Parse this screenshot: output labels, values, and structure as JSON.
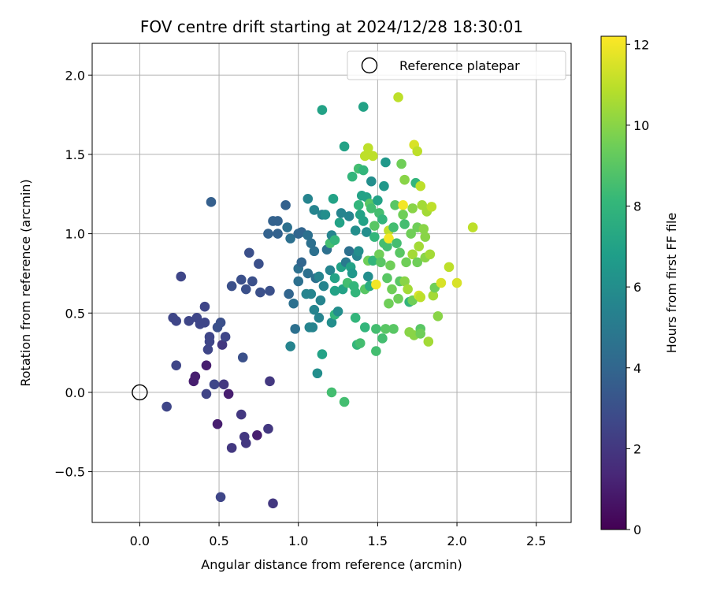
{
  "chart_data": {
    "type": "scatter",
    "title": "FOV centre drift starting at 2024/12/28 18:30:01",
    "xlabel": "Angular distance from reference (arcmin)",
    "ylabel": "Rotation from reference (arcmin)",
    "xlim": [
      -0.3,
      2.72
    ],
    "ylim": [
      -0.82,
      2.2
    ],
    "xticks": [
      0.0,
      0.5,
      1.0,
      1.5,
      2.0,
      2.5
    ],
    "yticks": [
      -0.5,
      0.0,
      0.5,
      1.0,
      1.5,
      2.0
    ],
    "xtick_labels": [
      "0.0",
      "0.5",
      "1.0",
      "1.5",
      "2.0",
      "2.5"
    ],
    "ytick_labels": [
      "−0.5",
      "0.0",
      "0.5",
      "1.0",
      "1.5",
      "2.0"
    ],
    "grid": true,
    "legend": {
      "placement": "top-right",
      "entries": [
        "Reference platepar"
      ]
    },
    "reference": {
      "x": 0.0,
      "y": 0.0,
      "label": "Reference platepar"
    },
    "colorbar": {
      "label": "Hours from first FF file",
      "min": 0,
      "max": 12.2,
      "ticks": [
        0,
        2,
        4,
        6,
        8,
        10,
        12
      ],
      "tick_labels": [
        "0",
        "2",
        "4",
        "6",
        "8",
        "10",
        "12"
      ],
      "colormap": "viridis"
    },
    "colormap_stops": [
      "#440154",
      "#482878",
      "#3e4989",
      "#31688e",
      "#26828e",
      "#1f9e89",
      "#35b779",
      "#6ece58",
      "#b5de2b",
      "#fde725"
    ],
    "series": [
      {
        "points": [
          [
            0.17,
            -0.09,
            2.6
          ],
          [
            0.21,
            0.47,
            2.6
          ],
          [
            0.23,
            0.17,
            2.6
          ],
          [
            0.23,
            0.45,
            2.6
          ],
          [
            0.26,
            0.73,
            2.6
          ],
          [
            0.31,
            0.45,
            2.6
          ],
          [
            0.34,
            0.07,
            1.0
          ],
          [
            0.35,
            0.1,
            1.0
          ],
          [
            0.36,
            0.47,
            2.6
          ],
          [
            0.38,
            0.43,
            2.6
          ],
          [
            0.41,
            0.44,
            2.6
          ],
          [
            0.41,
            0.54,
            2.6
          ],
          [
            0.42,
            0.17,
            1.0
          ],
          [
            0.42,
            -0.01,
            2.5
          ],
          [
            0.43,
            0.27,
            2.6
          ],
          [
            0.44,
            0.32,
            2.6
          ],
          [
            0.44,
            0.35,
            2.6
          ],
          [
            0.45,
            1.2,
            3.7
          ],
          [
            0.47,
            0.05,
            2.6
          ],
          [
            0.49,
            -0.2,
            1.0
          ],
          [
            0.49,
            0.41,
            3.0
          ],
          [
            0.51,
            0.44,
            3.0
          ],
          [
            0.51,
            -0.66,
            2.6
          ],
          [
            0.52,
            0.3,
            2.0
          ],
          [
            0.53,
            0.05,
            2.0
          ],
          [
            0.54,
            0.35,
            2.6
          ],
          [
            0.56,
            -0.01,
            1.0
          ],
          [
            0.58,
            -0.35,
            2.0
          ],
          [
            0.58,
            0.67,
            3.0
          ],
          [
            0.64,
            0.71,
            3.0
          ],
          [
            0.64,
            -0.14,
            2.0
          ],
          [
            0.65,
            0.22,
            3.0
          ],
          [
            0.66,
            -0.28,
            2.0
          ],
          [
            0.67,
            -0.32,
            2.0
          ],
          [
            0.67,
            0.65,
            3.0
          ],
          [
            0.69,
            0.88,
            3.0
          ],
          [
            0.71,
            0.7,
            3.0
          ],
          [
            0.74,
            -0.27,
            1.0
          ],
          [
            0.75,
            0.81,
            3.0
          ],
          [
            0.76,
            0.63,
            3.0
          ],
          [
            0.81,
            1.0,
            3.8
          ],
          [
            0.81,
            -0.23,
            2.0
          ],
          [
            0.82,
            0.64,
            3.0
          ],
          [
            0.82,
            0.07,
            2.0
          ],
          [
            0.84,
            -0.7,
            2.0
          ],
          [
            0.84,
            1.08,
            3.8
          ],
          [
            0.87,
            1.08,
            3.8
          ],
          [
            0.87,
            1.0,
            3.8
          ],
          [
            0.92,
            1.18,
            3.8
          ],
          [
            0.93,
            1.04,
            4.5
          ],
          [
            0.94,
            0.62,
            4.0
          ],
          [
            0.95,
            0.29,
            5.5
          ],
          [
            0.95,
            0.97,
            4.5
          ],
          [
            0.97,
            0.56,
            4.5
          ],
          [
            0.98,
            0.4,
            4.5
          ],
          [
            1.0,
            0.78,
            4.5
          ],
          [
            1.0,
            1.0,
            4.0
          ],
          [
            1.0,
            0.7,
            4.5
          ],
          [
            1.02,
            0.82,
            4.0
          ],
          [
            1.02,
            1.01,
            4.0
          ],
          [
            1.05,
            0.62,
            5.5
          ],
          [
            1.06,
            0.99,
            4.5
          ],
          [
            1.06,
            1.22,
            5.5
          ],
          [
            1.06,
            0.75,
            4.5
          ],
          [
            1.07,
            0.41,
            5.5
          ],
          [
            1.08,
            0.94,
            4.5
          ],
          [
            1.08,
            0.62,
            5.5
          ],
          [
            1.09,
            0.41,
            5.5
          ],
          [
            1.1,
            0.52,
            5.5
          ],
          [
            1.1,
            1.15,
            5.5
          ],
          [
            1.1,
            0.89,
            4.5
          ],
          [
            1.11,
            0.72,
            4.5
          ],
          [
            1.12,
            0.12,
            6.0
          ],
          [
            1.13,
            0.73,
            5.5
          ],
          [
            1.13,
            0.47,
            5.5
          ],
          [
            1.14,
            0.58,
            5.5
          ],
          [
            1.15,
            1.78,
            7.0
          ],
          [
            1.15,
            0.24,
            7.0
          ],
          [
            1.15,
            1.12,
            5.5
          ],
          [
            1.16,
            0.67,
            5.5
          ],
          [
            1.17,
            1.12,
            6.0
          ],
          [
            1.18,
            0.9,
            4.5
          ],
          [
            1.2,
            0.77,
            5.5
          ],
          [
            1.2,
            0.94,
            8.5
          ],
          [
            1.21,
            0.99,
            5.5
          ],
          [
            1.21,
            0.0,
            8.5
          ],
          [
            1.21,
            0.44,
            6.0
          ],
          [
            1.22,
            1.22,
            7.0
          ],
          [
            1.23,
            0.64,
            7.0
          ],
          [
            1.23,
            0.72,
            7.0
          ],
          [
            1.23,
            0.49,
            8.0
          ],
          [
            1.23,
            0.96,
            8.0
          ],
          [
            1.25,
            0.51,
            6.0
          ],
          [
            1.26,
            1.07,
            7.0
          ],
          [
            1.27,
            1.13,
            5.5
          ],
          [
            1.27,
            0.79,
            7.0
          ],
          [
            1.28,
            0.65,
            7.0
          ],
          [
            1.29,
            1.55,
            7.0
          ],
          [
            1.29,
            -0.06,
            8.5
          ],
          [
            1.3,
            0.82,
            5.0
          ],
          [
            1.31,
            0.69,
            8.5
          ],
          [
            1.32,
            1.11,
            5.5
          ],
          [
            1.32,
            0.89,
            4.5
          ],
          [
            1.33,
            0.79,
            7.0
          ],
          [
            1.34,
            1.36,
            8.0
          ],
          [
            1.34,
            0.75,
            6.5
          ],
          [
            1.35,
            0.67,
            8.0
          ],
          [
            1.36,
            0.63,
            8.0
          ],
          [
            1.36,
            0.47,
            8.0
          ],
          [
            1.36,
            1.02,
            6.0
          ],
          [
            1.37,
            0.86,
            5.5
          ],
          [
            1.37,
            0.3,
            8.0
          ],
          [
            1.38,
            1.41,
            8.5
          ],
          [
            1.38,
            1.18,
            8.0
          ],
          [
            1.38,
            0.89,
            6.0
          ],
          [
            1.39,
            0.31,
            8.5
          ],
          [
            1.39,
            1.12,
            7.0
          ],
          [
            1.4,
            1.24,
            7.0
          ],
          [
            1.41,
            1.8,
            7.0
          ],
          [
            1.41,
            1.08,
            7.0
          ],
          [
            1.41,
            1.4,
            8.0
          ],
          [
            1.42,
            0.41,
            8.0
          ],
          [
            1.42,
            1.49,
            11.0
          ],
          [
            1.42,
            0.65,
            9.0
          ],
          [
            1.43,
            1.23,
            7.0
          ],
          [
            1.43,
            1.01,
            6.0
          ],
          [
            1.44,
            1.54,
            11.0
          ],
          [
            1.44,
            0.83,
            9.5
          ],
          [
            1.44,
            0.73,
            6.0
          ],
          [
            1.45,
            1.19,
            9.0
          ],
          [
            1.45,
            0.67,
            7.5
          ],
          [
            1.46,
            1.33,
            6.0
          ],
          [
            1.46,
            1.16,
            8.5
          ],
          [
            1.47,
            1.49,
            11.0
          ],
          [
            1.47,
            0.83,
            8.0
          ],
          [
            1.48,
            1.05,
            9.0
          ],
          [
            1.48,
            0.98,
            8.0
          ],
          [
            1.49,
            0.68,
            12.0
          ],
          [
            1.49,
            0.26,
            8.5
          ],
          [
            1.49,
            0.4,
            8.5
          ],
          [
            1.5,
            1.21,
            7.0
          ],
          [
            1.51,
            0.87,
            9.5
          ],
          [
            1.51,
            1.13,
            8.5
          ],
          [
            1.52,
            0.82,
            9.0
          ],
          [
            1.53,
            0.34,
            8.5
          ],
          [
            1.53,
            1.09,
            8.0
          ],
          [
            1.54,
            0.94,
            8.5
          ],
          [
            1.54,
            1.3,
            6.5
          ],
          [
            1.55,
            0.4,
            9.0
          ],
          [
            1.55,
            1.45,
            6.5
          ],
          [
            1.56,
            0.92,
            8.5
          ],
          [
            1.56,
            0.72,
            9.0
          ],
          [
            1.57,
            1.02,
            11.0
          ],
          [
            1.57,
            0.97,
            12.0
          ],
          [
            1.57,
            0.56,
            9.5
          ],
          [
            1.58,
            0.8,
            9.5
          ],
          [
            1.59,
            0.65,
            9.5
          ],
          [
            1.6,
            1.04,
            8.5
          ],
          [
            1.6,
            0.4,
            9.0
          ],
          [
            1.61,
            1.18,
            9.0
          ],
          [
            1.62,
            0.94,
            8.5
          ],
          [
            1.63,
            1.86,
            11.0
          ],
          [
            1.63,
            0.59,
            9.5
          ],
          [
            1.64,
            0.7,
            9.0
          ],
          [
            1.64,
            0.88,
            9.0
          ],
          [
            1.65,
            1.44,
            9.5
          ],
          [
            1.66,
            1.18,
            12.0
          ],
          [
            1.66,
            1.12,
            9.5
          ],
          [
            1.67,
            1.06,
            8.5
          ],
          [
            1.67,
            0.7,
            10.0
          ],
          [
            1.67,
            1.34,
            10.0
          ],
          [
            1.68,
            0.82,
            9.5
          ],
          [
            1.69,
            0.65,
            10.5
          ],
          [
            1.7,
            0.38,
            10.0
          ],
          [
            1.7,
            0.57,
            8.0
          ],
          [
            1.71,
            1.0,
            9.5
          ],
          [
            1.72,
            1.16,
            10.0
          ],
          [
            1.72,
            0.58,
            9.5
          ],
          [
            1.72,
            0.87,
            10.5
          ],
          [
            1.73,
            1.56,
            11.5
          ],
          [
            1.73,
            0.36,
            10.0
          ],
          [
            1.74,
            1.32,
            8.0
          ],
          [
            1.75,
            0.82,
            9.5
          ],
          [
            1.75,
            1.52,
            11.0
          ],
          [
            1.75,
            1.04,
            9.5
          ],
          [
            1.76,
            0.92,
            10.5
          ],
          [
            1.76,
            0.61,
            11.5
          ],
          [
            1.77,
            0.6,
            11.0
          ],
          [
            1.77,
            1.3,
            11.0
          ],
          [
            1.77,
            0.4,
            9.0
          ],
          [
            1.77,
            0.37,
            9.5
          ],
          [
            1.78,
            1.18,
            10.5
          ],
          [
            1.79,
            1.03,
            10.0
          ],
          [
            1.8,
            0.98,
            10.0
          ],
          [
            1.8,
            0.85,
            10.0
          ],
          [
            1.81,
            1.14,
            10.5
          ],
          [
            1.82,
            0.32,
            10.5
          ],
          [
            1.83,
            0.87,
            10.5
          ],
          [
            1.84,
            1.17,
            11.0
          ],
          [
            1.85,
            0.61,
            10.5
          ],
          [
            1.86,
            0.66,
            9.5
          ],
          [
            1.88,
            0.48,
            10.0
          ],
          [
            1.9,
            0.69,
            11.5
          ],
          [
            1.95,
            0.79,
            11.0
          ],
          [
            2.0,
            0.69,
            11.5
          ],
          [
            2.1,
            1.04,
            11.0
          ]
        ]
      }
    ]
  }
}
